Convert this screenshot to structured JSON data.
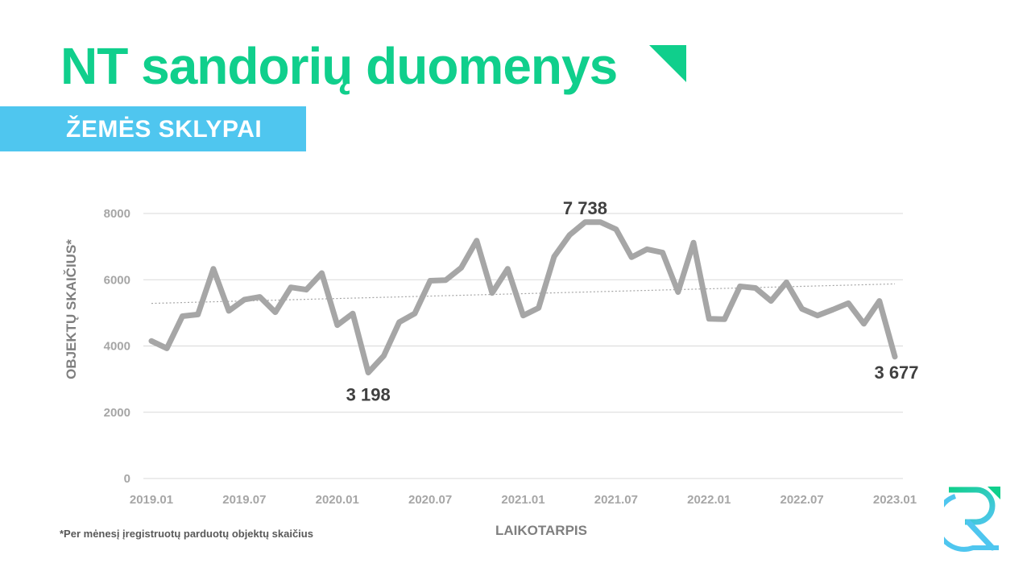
{
  "title": "NT sandorių duomenys",
  "subtitle": "ŽEMĖS SKLYPAI",
  "footnote": "*Per mėnesį įregistruotų parduotų objektų skaičius",
  "colors": {
    "title": "#10cf8c",
    "subtitle_band": "#4fc6ef",
    "line": "#a6a6a6",
    "trendline": "#a6a6a6",
    "grid": "#d9d9d9",
    "labels": "#404040"
  },
  "chart_data": {
    "type": "line",
    "xlabel": "LAIKOTARPIS",
    "ylabel": "OBJEKTŲ SKAIČIUS*",
    "ylim": [
      0,
      8000
    ],
    "y_ticks": [
      "0",
      "2000",
      "4000",
      "6000",
      "8000"
    ],
    "x_ticks": [
      "2019.01",
      "2019.07",
      "2020.01",
      "2020.07",
      "2021.01",
      "2021.07",
      "2022.01",
      "2022.07",
      "2023.01"
    ],
    "grid": "horizontal",
    "trendline": "linear, dotted",
    "x": [
      "2019.01",
      "2019.02",
      "2019.03",
      "2019.04",
      "2019.05",
      "2019.06",
      "2019.07",
      "2019.08",
      "2019.09",
      "2019.10",
      "2019.11",
      "2019.12",
      "2020.01",
      "2020.02",
      "2020.03",
      "2020.04",
      "2020.05",
      "2020.06",
      "2020.07",
      "2020.08",
      "2020.09",
      "2020.10",
      "2020.11",
      "2020.12",
      "2021.01",
      "2021.02",
      "2021.03",
      "2021.04",
      "2021.05",
      "2021.06",
      "2021.07",
      "2021.08",
      "2021.09",
      "2021.10",
      "2021.11",
      "2021.12",
      "2022.01",
      "2022.02",
      "2022.03",
      "2022.04",
      "2022.05",
      "2022.06",
      "2022.07",
      "2022.08",
      "2022.09",
      "2022.10",
      "2022.11",
      "2022.12",
      "2023.01"
    ],
    "series": [
      {
        "values": [
          4150,
          3930,
          4900,
          4950,
          6330,
          5060,
          5400,
          5480,
          5020,
          5770,
          5700,
          6200,
          4630,
          4980,
          3198,
          3700,
          4720,
          4980,
          5970,
          5990,
          6360,
          7180,
          5600,
          6330,
          4920,
          5150,
          6700,
          7350,
          7738,
          7738,
          7520,
          6680,
          6920,
          6820,
          5630,
          7120,
          4820,
          4810,
          5800,
          5750,
          5360,
          5920,
          5120,
          4920,
          5100,
          5290,
          4670,
          5360,
          3677
        ]
      }
    ],
    "data_labels": [
      {
        "x": "2020.03",
        "text": "3 198"
      },
      {
        "x": "2021.05",
        "text": "7 738"
      },
      {
        "x": "2023.01",
        "text": "3 677"
      }
    ]
  }
}
